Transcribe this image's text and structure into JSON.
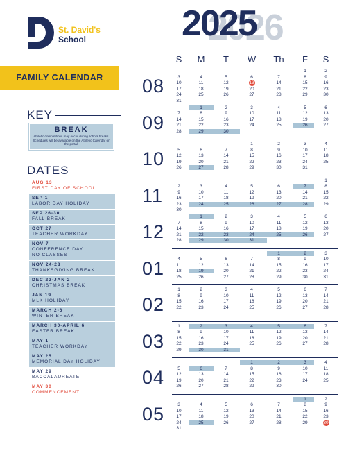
{
  "header": {
    "school_top": "St. David's",
    "school_bottom": "School",
    "banner": "FAMILY CALENDAR",
    "year_front": "2025",
    "year_back": "2026"
  },
  "key": {
    "title": "KEY",
    "label": "BREAK",
    "note": "Athletic competitions may occur during school breaks. Schedules will be available on the Athletic Calendar on the portal."
  },
  "dates": {
    "title": "DATES",
    "items": [
      {
        "date": "AUG 13",
        "text": [
          "FIRST DAY OF SCHOOL"
        ],
        "style": "red"
      },
      {
        "date": "SEP 1",
        "text": [
          "LABOR DAY HOLIDAY"
        ],
        "style": "break"
      },
      {
        "date": "SEP 26-30",
        "text": [
          "FALL BREAK"
        ],
        "style": "break"
      },
      {
        "date": "OCT 27",
        "text": [
          "TEACHER WORKDAY"
        ],
        "style": "break"
      },
      {
        "date": "NOV 7",
        "text": [
          "CONFERENCE DAY",
          "NO CLASSES"
        ],
        "style": "break"
      },
      {
        "date": "NOV 24-28",
        "text": [
          "THANKSGIVING BREAK"
        ],
        "style": "break"
      },
      {
        "date": "DEC 22-JAN 2",
        "text": [
          "CHRISTMAS BREAK"
        ],
        "style": "break"
      },
      {
        "date": "JAN 19",
        "text": [
          "MLK HOLIDAY"
        ],
        "style": "break"
      },
      {
        "date": "MARCH 2-6",
        "text": [
          "WINTER BREAK"
        ],
        "style": "break"
      },
      {
        "date": "MARCH 30-APRIL 6",
        "text": [
          "EASTER BREAK"
        ],
        "style": "break"
      },
      {
        "date": "MAY 1",
        "text": [
          "TEACHER WORKDAY"
        ],
        "style": "break"
      },
      {
        "date": "MAY 25",
        "text": [
          "MEMORIAL DAY HOLIDAY"
        ],
        "style": "break"
      },
      {
        "date": "MAY 29",
        "text": [
          "BACCALAUREATE"
        ],
        "style": "plain"
      },
      {
        "date": "MAY 30",
        "text": [
          "COMMENCEMENT"
        ],
        "style": "red"
      }
    ]
  },
  "calendar": {
    "weekdays": [
      "S",
      "M",
      "T",
      "W",
      "Th",
      "F",
      "S"
    ],
    "months": [
      {
        "label": "08",
        "weeks": [
          [
            "",
            "",
            "",
            "",
            "",
            "1",
            "2"
          ],
          [
            "3",
            "4",
            "5",
            "6",
            "7",
            "8",
            "9"
          ],
          [
            "10",
            "11",
            "12",
            "13",
            "14",
            "15",
            "16"
          ],
          [
            "17",
            "18",
            "19",
            "20",
            "21",
            "22",
            "23"
          ],
          [
            "24",
            "25",
            "26",
            "27",
            "28",
            "29",
            "30"
          ],
          [
            "31",
            "",
            "",
            "",
            "",
            "",
            ""
          ]
        ],
        "breaks": [],
        "circled": [
          "13"
        ]
      },
      {
        "label": "09",
        "weeks": [
          [
            "",
            "1",
            "2",
            "3",
            "4",
            "5",
            "6"
          ],
          [
            "7",
            "8",
            "9",
            "10",
            "11",
            "12",
            "13"
          ],
          [
            "14",
            "15",
            "16",
            "17",
            "18",
            "19",
            "20"
          ],
          [
            "21",
            "22",
            "23",
            "24",
            "25",
            "26",
            "27"
          ],
          [
            "28",
            "29",
            "30",
            "",
            "",
            "",
            ""
          ]
        ],
        "breaks": [
          "1",
          "26",
          "29",
          "30"
        ],
        "circled": []
      },
      {
        "label": "10",
        "weeks": [
          [
            "",
            "",
            "",
            "1",
            "2",
            "3",
            "4"
          ],
          [
            "5",
            "6",
            "7",
            "8",
            "9",
            "10",
            "11"
          ],
          [
            "12",
            "13",
            "14",
            "15",
            "16",
            "17",
            "18"
          ],
          [
            "19",
            "20",
            "21",
            "22",
            "23",
            "24",
            "25"
          ],
          [
            "26",
            "27",
            "28",
            "29",
            "30",
            "31",
            ""
          ]
        ],
        "breaks": [
          "27"
        ],
        "circled": []
      },
      {
        "label": "11",
        "weeks": [
          [
            "",
            "",
            "",
            "",
            "",
            "",
            "1"
          ],
          [
            "2",
            "3",
            "4",
            "5",
            "6",
            "7",
            "8"
          ],
          [
            "9",
            "10",
            "11",
            "12",
            "13",
            "14",
            "15"
          ],
          [
            "16",
            "17",
            "18",
            "19",
            "20",
            "21",
            "22"
          ],
          [
            "23",
            "24",
            "25",
            "26",
            "27",
            "28",
            "29"
          ],
          [
            "30",
            "",
            "",
            "",
            "",
            "",
            ""
          ]
        ],
        "breaks": [
          "7",
          "24",
          "25",
          "26",
          "27",
          "28"
        ],
        "circled": []
      },
      {
        "label": "12",
        "weeks": [
          [
            "",
            "1",
            "2",
            "3",
            "4",
            "5",
            "6"
          ],
          [
            "7",
            "8",
            "9",
            "10",
            "11",
            "12",
            "13"
          ],
          [
            "14",
            "15",
            "16",
            "17",
            "18",
            "19",
            "20"
          ],
          [
            "21",
            "22",
            "23",
            "24",
            "25",
            "26",
            "27"
          ],
          [
            "28",
            "29",
            "30",
            "31",
            "",
            "",
            ""
          ]
        ],
        "breaks": [
          "1",
          "22",
          "23",
          "24",
          "25",
          "26",
          "29",
          "30",
          "31"
        ],
        "circled": []
      },
      {
        "label": "01",
        "weeks": [
          [
            "",
            "",
            "",
            "",
            "1",
            "2",
            "3"
          ],
          [
            "4",
            "5",
            "6",
            "7",
            "8",
            "9",
            "10"
          ],
          [
            "11",
            "12",
            "13",
            "14",
            "15",
            "16",
            "17"
          ],
          [
            "18",
            "19",
            "20",
            "21",
            "22",
            "23",
            "24"
          ],
          [
            "25",
            "26",
            "27",
            "28",
            "29",
            "30",
            "31"
          ]
        ],
        "breaks": [
          "1",
          "2",
          "19"
        ],
        "circled": []
      },
      {
        "label": "02",
        "weeks": [
          [
            "1",
            "2",
            "3",
            "4",
            "5",
            "6",
            "7"
          ],
          [
            "8",
            "9",
            "10",
            "11",
            "12",
            "13",
            "14"
          ],
          [
            "15",
            "16",
            "17",
            "18",
            "19",
            "20",
            "21"
          ],
          [
            "22",
            "23",
            "24",
            "25",
            "26",
            "27",
            "28"
          ]
        ],
        "breaks": [],
        "circled": []
      },
      {
        "label": "03",
        "weeks": [
          [
            "1",
            "2",
            "3",
            "4",
            "5",
            "6",
            "7"
          ],
          [
            "8",
            "9",
            "10",
            "11",
            "12",
            "13",
            "14"
          ],
          [
            "15",
            "16",
            "17",
            "18",
            "19",
            "20",
            "21"
          ],
          [
            "22",
            "23",
            "24",
            "25",
            "26",
            "27",
            "28"
          ],
          [
            "29",
            "30",
            "31",
            "",
            "",
            "",
            ""
          ]
        ],
        "breaks": [
          "2",
          "3",
          "4",
          "5",
          "6",
          "30",
          "31"
        ],
        "circled": []
      },
      {
        "label": "04",
        "weeks": [
          [
            "",
            "",
            "",
            "1",
            "2",
            "3",
            "4"
          ],
          [
            "5",
            "6",
            "7",
            "8",
            "9",
            "10",
            "11"
          ],
          [
            "12",
            "13",
            "14",
            "15",
            "16",
            "17",
            "18"
          ],
          [
            "19",
            "20",
            "21",
            "22",
            "23",
            "24",
            "25"
          ],
          [
            "26",
            "27",
            "28",
            "29",
            "30",
            "",
            ""
          ]
        ],
        "breaks": [
          "1",
          "2",
          "3",
          "6"
        ],
        "circled": []
      },
      {
        "label": "05",
        "weeks": [
          [
            "",
            "",
            "",
            "",
            "",
            "1",
            "2"
          ],
          [
            "3",
            "4",
            "5",
            "6",
            "7",
            "8",
            "9"
          ],
          [
            "10",
            "11",
            "12",
            "13",
            "14",
            "15",
            "16"
          ],
          [
            "17",
            "18",
            "19",
            "20",
            "21",
            "22",
            "23"
          ],
          [
            "24",
            "25",
            "26",
            "27",
            "28",
            "29",
            "30"
          ],
          [
            "31",
            "",
            "",
            "",
            "",
            "",
            ""
          ]
        ],
        "breaks": [
          "1",
          "25"
        ],
        "circled": [
          "30"
        ]
      }
    ]
  }
}
